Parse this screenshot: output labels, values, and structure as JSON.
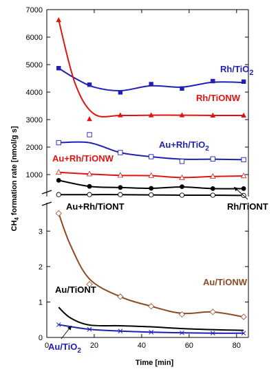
{
  "chart_data": {
    "type": "line",
    "xlabel": "Time [min]",
    "ylabel": "CH4 formation rate [nmol/g s]",
    "xlim": [
      0,
      85
    ],
    "x_ticks": [
      0,
      20,
      40,
      60,
      80
    ],
    "upper_panel": {
      "ylim": [
        200,
        7000
      ],
      "y_ticks": [
        1000,
        2000,
        3000,
        4000,
        5000,
        6000,
        7000
      ],
      "series": [
        {
          "name": "Rh/TiO2",
          "name_main": "Rh/TiO",
          "name_sub": "2",
          "color": "#1f1fb4",
          "marker": "square-filled",
          "points": [
            [
              5,
              4870
            ],
            [
              18,
              4270
            ],
            [
              31,
              3990
            ],
            [
              44,
              4290
            ],
            [
              57,
              4130
            ],
            [
              70,
              4400
            ],
            [
              83,
              4380
            ]
          ],
          "curve": [
            [
              5,
              4870
            ],
            [
              12,
              4500
            ],
            [
              20,
              4180
            ],
            [
              31,
              4050
            ],
            [
              44,
              4230
            ],
            [
              57,
              4180
            ],
            [
              70,
              4360
            ],
            [
              83,
              4350
            ]
          ]
        },
        {
          "name": "Rh/TiONW",
          "color": "#e0140f",
          "marker": "triangle-filled",
          "points": [
            [
              5,
              6620
            ],
            [
              18,
              3020
            ],
            [
              31,
              3160
            ],
            [
              44,
              3160
            ],
            [
              57,
              3160
            ],
            [
              70,
              3150
            ],
            [
              83,
              3150
            ]
          ],
          "curve": [
            [
              5,
              6620
            ],
            [
              12,
              4300
            ],
            [
              20,
              3200
            ],
            [
              31,
              3150
            ],
            [
              44,
              3160
            ],
            [
              57,
              3160
            ],
            [
              70,
              3150
            ],
            [
              83,
              3150
            ]
          ]
        },
        {
          "name": "Au+Rh/TiO2",
          "name_main": "Au+Rh/TiO",
          "name_sub": "2",
          "color": "#1f1fb4",
          "marker": "square-open",
          "points": [
            [
              5,
              2160
            ],
            [
              18,
              2450
            ],
            [
              31,
              1800
            ],
            [
              44,
              1650
            ],
            [
              57,
              1480
            ],
            [
              70,
              1570
            ],
            [
              83,
              1540
            ]
          ],
          "curve": [
            [
              5,
              2160
            ],
            [
              18,
              2160
            ],
            [
              31,
              1800
            ],
            [
              44,
              1650
            ],
            [
              57,
              1560
            ],
            [
              70,
              1560
            ],
            [
              83,
              1540
            ]
          ]
        },
        {
          "name": "Au+Rh/TiONW",
          "color": "#e0140f",
          "marker": "triangle-open",
          "points": [
            [
              5,
              1080
            ],
            [
              18,
              1020
            ],
            [
              31,
              970
            ],
            [
              44,
              960
            ],
            [
              57,
              880
            ],
            [
              70,
              930
            ],
            [
              83,
              950
            ]
          ],
          "curve": [
            [
              5,
              1080
            ],
            [
              18,
              1020
            ],
            [
              31,
              970
            ],
            [
              44,
              960
            ],
            [
              57,
              890
            ],
            [
              70,
              930
            ],
            [
              83,
              950
            ]
          ]
        },
        {
          "name": "Rh/TiONT",
          "color": "#000000",
          "marker": "circle-filled",
          "points": [
            [
              5,
              790
            ],
            [
              18,
              570
            ],
            [
              31,
              530
            ],
            [
              44,
              500
            ],
            [
              57,
              560
            ],
            [
              70,
              490
            ],
            [
              83,
              490
            ]
          ],
          "curve": [
            [
              5,
              790
            ],
            [
              18,
              570
            ],
            [
              31,
              530
            ],
            [
              44,
              500
            ],
            [
              57,
              550
            ],
            [
              70,
              490
            ],
            [
              83,
              490
            ]
          ]
        },
        {
          "name": "Au+Rh/TiONT",
          "color": "#000000",
          "marker": "circle-open",
          "points": [
            [
              5,
              270
            ],
            [
              18,
              270
            ],
            [
              31,
              270
            ],
            [
              44,
              260
            ],
            [
              57,
              250
            ],
            [
              70,
              250
            ],
            [
              83,
              240
            ]
          ],
          "curve": [
            [
              5,
              270
            ],
            [
              18,
              270
            ],
            [
              31,
              270
            ],
            [
              44,
              260
            ],
            [
              57,
              250
            ],
            [
              70,
              250
            ],
            [
              83,
              240
            ]
          ]
        }
      ]
    },
    "lower_panel": {
      "ylim": [
        0,
        3.8
      ],
      "y_ticks": [
        0,
        1,
        2,
        3
      ],
      "series": [
        {
          "name": "Au/TiONW",
          "color": "#8b4a23",
          "marker": "diamond-open",
          "points": [
            [
              5,
              3.5
            ],
            [
              18,
              1.5
            ],
            [
              31,
              1.15
            ],
            [
              44,
              0.88
            ],
            [
              57,
              0.65
            ],
            [
              70,
              0.72
            ],
            [
              83,
              0.58
            ]
          ],
          "curve": [
            [
              5,
              3.5
            ],
            [
              10,
              2.6
            ],
            [
              18,
              1.65
            ],
            [
              31,
              1.15
            ],
            [
              44,
              0.88
            ],
            [
              57,
              0.68
            ],
            [
              70,
              0.72
            ],
            [
              83,
              0.58
            ]
          ]
        },
        {
          "name": "Au/TiONT",
          "color": "#000000",
          "marker": "none",
          "points": [],
          "curve": [
            [
              5,
              0.85
            ],
            [
              10,
              0.55
            ],
            [
              18,
              0.35
            ],
            [
              31,
              0.33
            ],
            [
              44,
              0.3
            ],
            [
              57,
              0.25
            ],
            [
              70,
              0.22
            ],
            [
              83,
              0.2
            ]
          ]
        },
        {
          "name": "Au/TiO2",
          "name_main": "Au/TiO",
          "name_sub": "2",
          "color": "#1f1fb4",
          "marker": "x",
          "points": [
            [
              5,
              0.36
            ],
            [
              18,
              0.23
            ],
            [
              31,
              0.18
            ],
            [
              44,
              0.15
            ],
            [
              57,
              0.13
            ],
            [
              70,
              0.12
            ],
            [
              83,
              0.12
            ]
          ],
          "curve": [
            [
              5,
              0.36
            ],
            [
              18,
              0.23
            ],
            [
              31,
              0.18
            ],
            [
              44,
              0.15
            ],
            [
              57,
              0.13
            ],
            [
              70,
              0.12
            ],
            [
              83,
              0.12
            ]
          ]
        }
      ]
    }
  }
}
